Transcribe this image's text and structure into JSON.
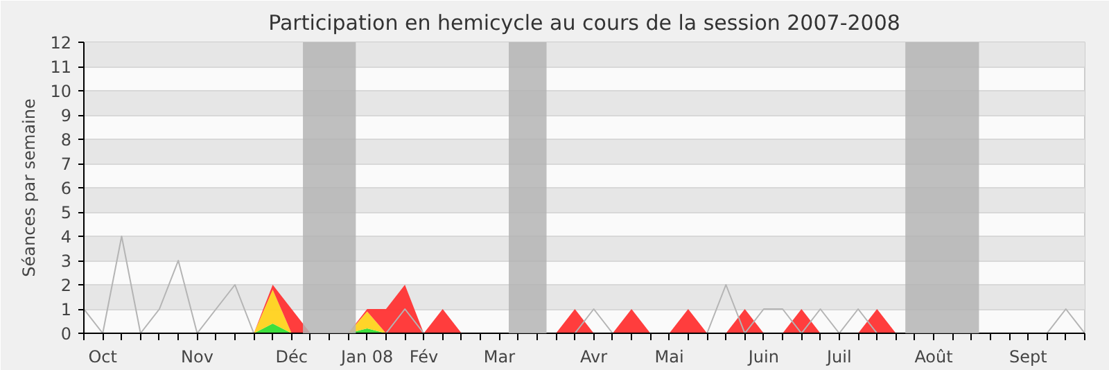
{
  "chart_data": {
    "type": "area",
    "stacked": true,
    "title": "Participation en hemicycle au cours de la session 2007-2008",
    "ylabel": "Séances par semaine",
    "categories": [
      null,
      "Oct",
      null,
      null,
      null,
      null,
      "Nov",
      null,
      null,
      null,
      null,
      "Déc",
      null,
      null,
      null,
      "Jan 08",
      null,
      null,
      "Fév",
      null,
      null,
      null,
      "Mar",
      null,
      null,
      null,
      null,
      "Avr",
      null,
      null,
      null,
      "Mai",
      null,
      null,
      null,
      null,
      "Juin",
      null,
      null,
      null,
      "Juil",
      null,
      null,
      null,
      null,
      "Août",
      null,
      null,
      null,
      null,
      "Sept",
      null,
      null,
      null
    ],
    "series": [
      {
        "color": "#33dd33",
        "values": [
          0,
          0,
          0,
          0,
          0,
          0,
          0,
          0,
          0,
          0,
          0.4,
          0,
          0,
          0,
          0,
          0.2,
          0,
          0,
          0,
          0,
          0,
          0,
          0,
          0,
          0,
          0,
          0,
          0,
          0,
          0,
          0,
          0,
          0,
          0,
          0,
          0,
          0,
          0,
          0,
          0,
          0,
          0,
          0,
          0,
          0,
          0,
          0,
          0,
          0,
          0,
          0,
          0,
          0,
          0
        ]
      },
      {
        "color": "#ffd21e",
        "values": [
          0,
          0,
          0,
          0,
          0,
          0,
          0,
          0,
          0,
          0,
          1.4,
          0,
          0,
          0,
          0,
          0.7,
          0,
          0,
          0,
          0,
          0,
          0,
          0,
          0,
          0,
          0,
          0,
          0,
          0,
          0,
          0,
          0,
          0,
          0,
          0,
          0,
          0,
          0,
          0,
          0,
          0,
          0,
          0,
          0,
          0,
          0,
          0,
          0,
          0,
          0,
          0,
          0,
          0,
          0
        ]
      },
      {
        "color": "#ff3333",
        "values": [
          0,
          0,
          0,
          0,
          0,
          0,
          0,
          0,
          0,
          0,
          0.2,
          1,
          0,
          0,
          0,
          0.1,
          1,
          2,
          0,
          1,
          0,
          0,
          0,
          0,
          0,
          0,
          1,
          0,
          0,
          1,
          0,
          0,
          1,
          0,
          0,
          1,
          0,
          0,
          1,
          0,
          0,
          0,
          1,
          0,
          0,
          0,
          0,
          0,
          0,
          0,
          0,
          0,
          0,
          0
        ]
      },
      {
        "type": "line",
        "color": "#b4b4b4",
        "values": [
          1,
          0,
          4,
          0,
          1,
          3,
          0,
          1,
          2,
          0,
          0,
          0,
          0,
          0,
          0,
          0,
          0,
          1,
          0,
          0,
          0,
          0,
          0,
          0,
          0,
          0,
          0,
          1,
          0,
          0,
          0,
          0,
          0,
          0,
          2,
          0,
          1,
          1,
          0,
          1,
          0,
          1,
          0,
          0,
          0,
          0,
          0,
          0,
          0,
          0,
          0,
          0,
          1,
          0
        ]
      }
    ],
    "ylim": [
      0,
      12
    ],
    "yticks": [
      0,
      1,
      2,
      3,
      4,
      5,
      6,
      7,
      8,
      9,
      10,
      11,
      12
    ],
    "grid": "y"
  }
}
